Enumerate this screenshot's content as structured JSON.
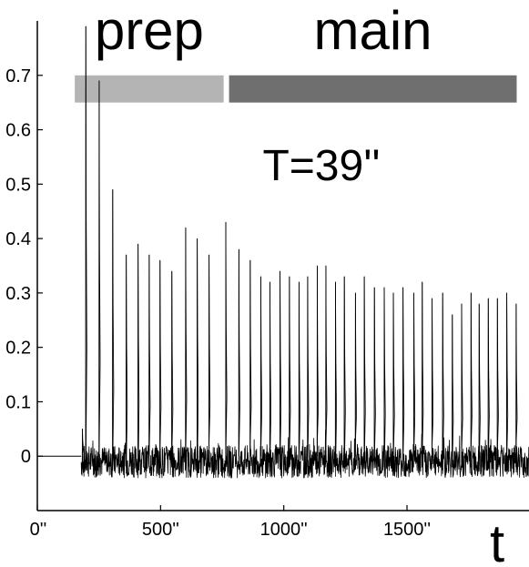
{
  "chart_data": {
    "type": "line",
    "title": "",
    "xlabel": "t",
    "ylabel": "",
    "xlim": [
      0,
      1995
    ],
    "ylim": [
      -0.1,
      0.8
    ],
    "x_ticks": [
      {
        "value": 0,
        "label": "0''"
      },
      {
        "value": 500,
        "label": "500''"
      },
      {
        "value": 1000,
        "label": "1000''"
      },
      {
        "value": 1500,
        "label": "1500''"
      }
    ],
    "y_ticks": [
      {
        "value": 0,
        "label": "0"
      },
      {
        "value": 0.1,
        "label": "0.1"
      },
      {
        "value": 0.2,
        "label": "0.2"
      },
      {
        "value": 0.3,
        "label": "0.3"
      },
      {
        "value": 0.4,
        "label": "0.4"
      },
      {
        "value": 0.5,
        "label": "0.5"
      },
      {
        "value": 0.6,
        "label": "0.6"
      },
      {
        "value": 0.7,
        "label": "0.7"
      }
    ],
    "annotation": "T=39''",
    "segments": [
      {
        "label": "prep",
        "start": 152,
        "end": 756,
        "color": "#b4b4b4"
      },
      {
        "label": "main",
        "start": 778,
        "end": 1945,
        "color": "#6f6f6f"
      }
    ],
    "baseline_segment": {
      "x": [
        0,
        178
      ],
      "y": 0.0
    },
    "series": [
      {
        "x": [
          182,
          196,
          250,
          305,
          360,
          408,
          453,
          497,
          545,
          601,
          648,
          696,
          764,
          817,
          863,
          906,
          943,
          984,
          1022,
          1061,
          1096,
          1135,
          1170,
          1209,
          1245,
          1290,
          1326,
          1367,
          1407,
          1444,
          1483,
          1527,
          1561,
          1601,
          1644,
          1683,
          1721,
          1759,
          1792,
          1829,
          1866,
          1904,
          1942
        ],
        "peaks": [
          0.05,
          0.79,
          0.69,
          0.49,
          0.37,
          0.39,
          0.37,
          0.36,
          0.34,
          0.42,
          0.4,
          0.37,
          0.43,
          0.38,
          0.36,
          0.33,
          0.32,
          0.34,
          0.33,
          0.32,
          0.33,
          0.35,
          0.35,
          0.32,
          0.33,
          0.3,
          0.33,
          0.31,
          0.31,
          0.3,
          0.31,
          0.3,
          0.32,
          0.29,
          0.3,
          0.26,
          0.28,
          0.3,
          0.28,
          0.29,
          0.29,
          0.3,
          0.28
        ],
        "noise_band": [
          -0.04,
          0.02
        ]
      }
    ]
  }
}
